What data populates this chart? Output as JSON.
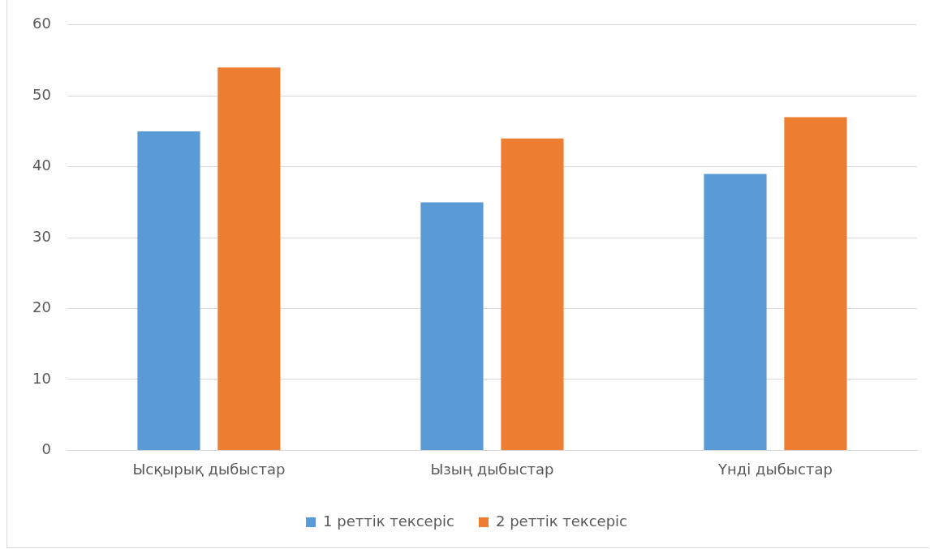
{
  "chart_data": {
    "type": "bar",
    "categories": [
      "Ысқырық дыбыстар",
      "Ызың дыбыстар",
      "Үнді дыбыстар"
    ],
    "series": [
      {
        "name": "1 реттік тексеріс",
        "color": "#5b9bd5",
        "values": [
          45,
          35,
          39
        ]
      },
      {
        "name": "2 реттік тексеріс",
        "color": "#ed7d31",
        "values": [
          54,
          44,
          47
        ]
      }
    ],
    "ylim": [
      0,
      60
    ],
    "yticks": [
      0,
      10,
      20,
      30,
      40,
      50,
      60
    ],
    "grid": "y",
    "legend": "bottom"
  }
}
